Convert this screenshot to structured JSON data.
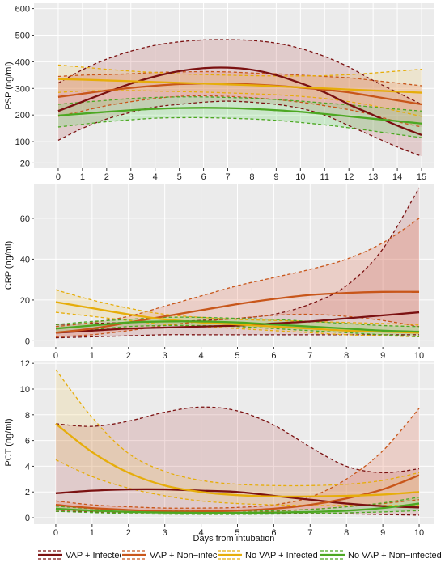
{
  "xlabel": "Days from intubation",
  "legend": [
    {
      "name": "VAP + Infected",
      "color": "#7b1111"
    },
    {
      "name": "VAP + Non−infected",
      "color": "#c8561a"
    },
    {
      "name": "No VAP + Infected",
      "color": "#e6ad0a"
    },
    {
      "name": "No VAP + Non−infected",
      "color": "#4ca822"
    }
  ],
  "chart_data": [
    {
      "type": "line",
      "ylabel": "PSP (ng/ml)",
      "xlim": [
        -1,
        15.5
      ],
      "ylim": [
        0,
        620
      ],
      "xticks": [
        0,
        1,
        2,
        3,
        4,
        5,
        6,
        7,
        8,
        9,
        10,
        11,
        12,
        13,
        14,
        15
      ],
      "yticks": [
        20,
        100,
        200,
        300,
        400,
        500,
        600
      ],
      "grid": true,
      "series": [
        {
          "name": "VAP + Infected",
          "color": "#7b1111",
          "fill": "rgba(180,60,60,0.18)",
          "x": [
            0,
            1,
            2,
            3,
            4,
            5,
            6,
            7,
            8,
            9,
            10,
            11,
            12,
            13,
            14,
            15
          ],
          "values": [
            215,
            250,
            285,
            318,
            345,
            365,
            376,
            378,
            370,
            350,
            320,
            285,
            240,
            200,
            160,
            125
          ],
          "lower": [
            105,
            150,
            185,
            210,
            230,
            240,
            248,
            252,
            248,
            240,
            225,
            200,
            160,
            120,
            80,
            45
          ],
          "upper": [
            320,
            370,
            410,
            440,
            462,
            475,
            482,
            483,
            480,
            470,
            450,
            420,
            380,
            330,
            285,
            240
          ]
        },
        {
          "name": "VAP + Non−infected",
          "color": "#c8561a",
          "fill": "rgba(230,120,90,0.25)",
          "x": [
            0,
            1,
            2,
            3,
            4,
            5,
            6,
            7,
            8,
            9,
            10,
            11,
            12,
            13,
            14,
            15
          ],
          "values": [
            268,
            280,
            292,
            302,
            310,
            316,
            318,
            318,
            315,
            310,
            303,
            295,
            285,
            270,
            255,
            240
          ],
          "lower": [
            195,
            215,
            235,
            250,
            262,
            270,
            272,
            270,
            265,
            258,
            248,
            235,
            220,
            200,
            175,
            155
          ],
          "upper": [
            345,
            350,
            352,
            355,
            360,
            362,
            363,
            362,
            358,
            355,
            350,
            345,
            340,
            330,
            320,
            310
          ]
        },
        {
          "name": "No VAP + Infected",
          "color": "#e6ad0a",
          "fill": "rgba(240,200,90,0.2)",
          "x": [
            0,
            1,
            2,
            3,
            4,
            5,
            6,
            7,
            8,
            9,
            10,
            11,
            12,
            13,
            14,
            15
          ],
          "values": [
            335,
            333,
            330,
            327,
            324,
            321,
            318,
            315,
            312,
            308,
            304,
            300,
            296,
            292,
            288,
            284
          ],
          "lower": [
            285,
            290,
            292,
            292,
            290,
            288,
            286,
            283,
            280,
            276,
            270,
            262,
            250,
            235,
            215,
            195
          ],
          "upper": [
            388,
            380,
            372,
            365,
            360,
            355,
            352,
            350,
            348,
            347,
            347,
            348,
            352,
            358,
            365,
            372
          ]
        },
        {
          "name": "No VAP + Non−infected",
          "color": "#4ca822",
          "fill": "rgba(120,220,120,0.28)",
          "x": [
            0,
            1,
            2,
            3,
            4,
            5,
            6,
            7,
            8,
            9,
            10,
            11,
            12,
            13,
            14,
            15
          ],
          "values": [
            198,
            205,
            212,
            218,
            223,
            226,
            227,
            226,
            223,
            218,
            212,
            204,
            195,
            186,
            177,
            168
          ],
          "lower": [
            155,
            165,
            175,
            182,
            188,
            190,
            190,
            188,
            185,
            180,
            172,
            163,
            152,
            140,
            127,
            115
          ],
          "upper": [
            240,
            248,
            255,
            262,
            266,
            268,
            268,
            266,
            263,
            258,
            252,
            245,
            238,
            230,
            222,
            215
          ]
        }
      ]
    },
    {
      "type": "line",
      "ylabel": "CRP (ng/ml)",
      "xlim": [
        -0.6,
        10.4
      ],
      "ylim": [
        -3,
        77
      ],
      "xticks": [
        0,
        1,
        2,
        3,
        4,
        5,
        6,
        7,
        8,
        9,
        10
      ],
      "yticks": [
        0,
        20,
        40,
        60
      ],
      "grid": true,
      "series": [
        {
          "name": "VAP + Infected",
          "color": "#7b1111",
          "fill": "rgba(180,60,60,0.18)",
          "x": [
            0,
            1,
            2,
            3,
            4,
            5,
            6,
            7,
            8,
            9,
            10
          ],
          "values": [
            4,
            5,
            6,
            6.5,
            7,
            7.5,
            8.5,
            9.5,
            11,
            12.5,
            14
          ],
          "lower": [
            1.5,
            2,
            2.5,
            3,
            3,
            3,
            3,
            3,
            3,
            3,
            3
          ],
          "upper": [
            8,
            8.5,
            9,
            9.5,
            10,
            11,
            13,
            18,
            27,
            45,
            75
          ]
        },
        {
          "name": "VAP + Non−infected",
          "color": "#c8561a",
          "fill": "rgba(230,120,90,0.25)",
          "x": [
            0,
            1,
            2,
            3,
            4,
            5,
            6,
            7,
            8,
            9,
            10
          ],
          "values": [
            4,
            6,
            9,
            12,
            15,
            18,
            20.5,
            22.5,
            23.5,
            24,
            24
          ],
          "lower": [
            2,
            3,
            5,
            7.5,
            9.5,
            11,
            12.5,
            13,
            12,
            10,
            7
          ],
          "upper": [
            7,
            9,
            12,
            17,
            22,
            27,
            31,
            35,
            40,
            48,
            60
          ]
        },
        {
          "name": "No VAP + Infected",
          "color": "#e6ad0a",
          "fill": "rgba(240,200,90,0.2)",
          "x": [
            0,
            1,
            2,
            3,
            4,
            5,
            6,
            7,
            8,
            9,
            10
          ],
          "values": [
            19,
            16,
            13,
            10.5,
            9,
            8,
            7,
            6,
            5,
            4.5,
            4
          ],
          "lower": [
            14,
            12,
            10,
            8,
            7,
            6,
            5,
            4,
            3,
            2.5,
            2
          ],
          "upper": [
            25,
            20,
            16,
            13,
            11.5,
            10.5,
            10,
            9.5,
            9,
            8.5,
            8
          ]
        },
        {
          "name": "No VAP + Non−infected",
          "color": "#4ca822",
          "fill": "rgba(120,220,120,0.28)",
          "x": [
            0,
            1,
            2,
            3,
            4,
            5,
            6,
            7,
            8,
            9,
            10
          ],
          "values": [
            6,
            7.5,
            9,
            9.5,
            9.5,
            9,
            8,
            7,
            6,
            5,
            4.5
          ],
          "lower": [
            4,
            5.5,
            7,
            7.5,
            7.5,
            7,
            6,
            5,
            4,
            3,
            2
          ],
          "upper": [
            8,
            9.5,
            10.5,
            11.5,
            11.5,
            11,
            10.5,
            9.5,
            8.5,
            7.5,
            7
          ]
        }
      ]
    },
    {
      "type": "line",
      "ylabel": "PCT (ng/ml)",
      "xlim": [
        -0.6,
        10.4
      ],
      "ylim": [
        -0.5,
        12.2
      ],
      "xticks": [
        0,
        1,
        2,
        3,
        4,
        5,
        6,
        7,
        8,
        9,
        10
      ],
      "yticks": [
        0,
        2,
        4,
        6,
        8,
        10,
        12
      ],
      "grid": true,
      "series": [
        {
          "name": "VAP + Infected",
          "color": "#7b1111",
          "fill": "rgba(180,60,60,0.18)",
          "x": [
            0,
            1,
            2,
            3,
            4,
            5,
            6,
            7,
            8,
            9,
            10
          ],
          "values": [
            1.9,
            2.1,
            2.2,
            2.2,
            2.1,
            2.0,
            1.7,
            1.4,
            1.1,
            0.9,
            0.8
          ],
          "lower": [
            0.5,
            0.45,
            0.42,
            0.4,
            0.38,
            0.36,
            0.35,
            0.33,
            0.3,
            0.25,
            0.2
          ],
          "upper": [
            7.3,
            7.1,
            7.5,
            8.2,
            8.6,
            8.3,
            7.2,
            5.5,
            4.0,
            3.5,
            3.8
          ]
        },
        {
          "name": "VAP + Non−infected",
          "color": "#c8561a",
          "fill": "rgba(230,120,90,0.25)",
          "x": [
            0,
            1,
            2,
            3,
            4,
            5,
            6,
            7,
            8,
            9,
            10
          ],
          "values": [
            1.0,
            0.75,
            0.6,
            0.5,
            0.5,
            0.55,
            0.7,
            1.0,
            1.5,
            2.2,
            3.3
          ],
          "lower": [
            0.6,
            0.5,
            0.42,
            0.38,
            0.38,
            0.4,
            0.5,
            0.65,
            0.85,
            1.1,
            1.4
          ],
          "upper": [
            1.3,
            1.0,
            0.85,
            0.75,
            0.75,
            0.8,
            1.0,
            1.6,
            3.0,
            5.2,
            8.5
          ]
        },
        {
          "name": "No VAP + Infected",
          "color": "#e6ad0a",
          "fill": "rgba(240,200,90,0.2)",
          "x": [
            0,
            1,
            2,
            3,
            4,
            5,
            6,
            7,
            8,
            9,
            10
          ],
          "values": [
            7.3,
            5.1,
            3.5,
            2.5,
            2.0,
            1.75,
            1.65,
            1.65,
            1.7,
            1.8,
            2.0
          ],
          "lower": [
            4.5,
            3.2,
            2.3,
            1.7,
            1.3,
            1.1,
            1.0,
            0.95,
            0.95,
            0.95,
            0.95
          ],
          "upper": [
            11.5,
            7.8,
            5.0,
            3.6,
            2.9,
            2.6,
            2.5,
            2.5,
            2.6,
            2.9,
            3.5
          ]
        },
        {
          "name": "No VAP + Non−infected",
          "color": "#4ca822",
          "fill": "rgba(120,220,120,0.28)",
          "x": [
            0,
            1,
            2,
            3,
            4,
            5,
            6,
            7,
            8,
            9,
            10
          ],
          "values": [
            0.7,
            0.55,
            0.45,
            0.4,
            0.38,
            0.38,
            0.4,
            0.45,
            0.55,
            0.75,
            1.1
          ],
          "lower": [
            0.5,
            0.4,
            0.32,
            0.28,
            0.26,
            0.26,
            0.28,
            0.32,
            0.38,
            0.45,
            0.55
          ],
          "upper": [
            0.9,
            0.7,
            0.6,
            0.55,
            0.52,
            0.52,
            0.55,
            0.65,
            0.85,
            1.15,
            1.6
          ]
        }
      ]
    }
  ]
}
